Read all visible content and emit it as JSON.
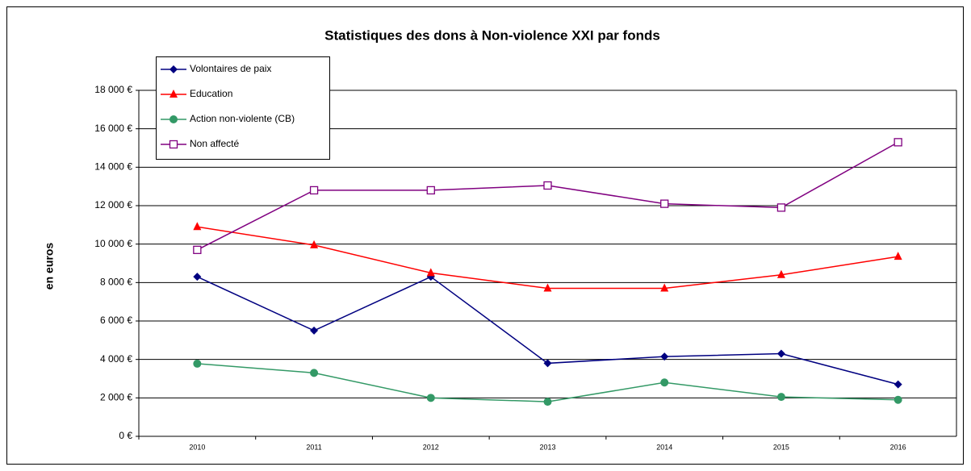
{
  "chart_data": {
    "type": "line",
    "title": "Statistiques des dons à Non-violence XXI par fonds",
    "y_label": "en euros",
    "categories": [
      "2010",
      "2011",
      "2012",
      "2013",
      "2014",
      "2015",
      "2016"
    ],
    "series": [
      {
        "name": "Volontaires de paix",
        "color": "#000080",
        "marker": "diamond",
        "values": [
          8300,
          5500,
          8300,
          3800,
          4150,
          4300,
          2700
        ]
      },
      {
        "name": "Education",
        "color": "#ff0000",
        "marker": "triangle",
        "values": [
          10900,
          9950,
          8500,
          7700,
          7700,
          8400,
          9350
        ]
      },
      {
        "name": "Action non-violente (CB)",
        "color": "#339966",
        "marker": "circle",
        "values": [
          3780,
          3300,
          2000,
          1800,
          2800,
          2050,
          1900
        ]
      },
      {
        "name": "Non affecté",
        "color": "#800080",
        "marker": "square-open",
        "values": [
          9700,
          12800,
          12800,
          13050,
          12100,
          11900,
          15300
        ]
      }
    ],
    "ylim": [
      0,
      18000
    ],
    "yticks": [
      {
        "value": 0,
        "label": "0 €"
      },
      {
        "value": 2000,
        "label": "2 000 €"
      },
      {
        "value": 4000,
        "label": "4 000 €"
      },
      {
        "value": 6000,
        "label": "6 000 €"
      },
      {
        "value": 8000,
        "label": "8 000 €"
      },
      {
        "value": 10000,
        "label": "10 000 €"
      },
      {
        "value": 12000,
        "label": "12 000 €"
      },
      {
        "value": 14000,
        "label": "14 000 €"
      },
      {
        "value": 16000,
        "label": "16 000 €"
      },
      {
        "value": 18000,
        "label": "18 000 €"
      }
    ],
    "grid": true,
    "legend": "top-left"
  }
}
